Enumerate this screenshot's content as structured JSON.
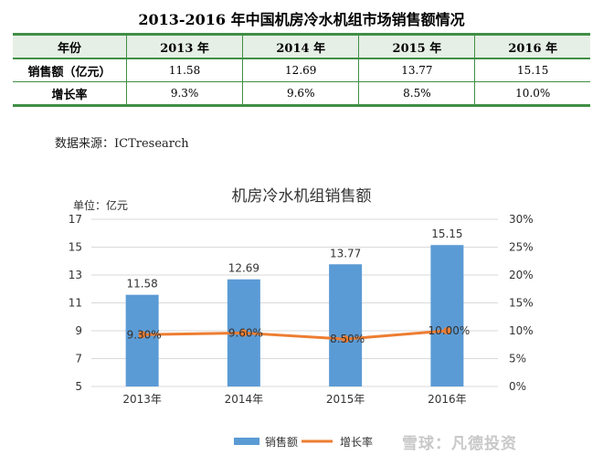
{
  "doc_title": "2013-2016 年中国机房冷水机组市场销售额情况",
  "table": {
    "headers": [
      "年份",
      "2013 年",
      "2014 年",
      "2015 年",
      "2016 年"
    ],
    "rows": [
      [
        "销售额（亿元）",
        "11.58",
        "12.69",
        "13.77",
        "15.15"
      ],
      [
        "增长率",
        "9.3%",
        "9.6%",
        "8.5%",
        "10.0%"
      ]
    ]
  },
  "source": "数据来源：ICTresearch",
  "watermark": "雪球：凡德投资",
  "colors": {
    "bar": "#5b9bd5",
    "line": "#ed7d31",
    "table_line": "#3f8f45",
    "table_header_bg": "#e6efe5"
  },
  "chart_data": {
    "type": "bar",
    "title": "机房冷水机组销售额",
    "unit_label": "单位：亿元",
    "categories": [
      "2013年",
      "2014年",
      "2015年",
      "2016年"
    ],
    "series": [
      {
        "name": "销售额",
        "type": "bar",
        "axis": "left",
        "values": [
          11.58,
          12.69,
          13.77,
          15.15
        ],
        "labels": [
          "11.58",
          "12.69",
          "13.77",
          "15.15"
        ]
      },
      {
        "name": "增长率",
        "type": "line",
        "axis": "right",
        "values": [
          9.3,
          9.6,
          8.5,
          10.0
        ],
        "labels": [
          "9.30%",
          "9.60%",
          "8.50%",
          "10.00%"
        ]
      }
    ],
    "y_left": {
      "min": 5,
      "max": 17,
      "ticks": [
        "5",
        "7",
        "9",
        "11",
        "13",
        "15",
        "17"
      ]
    },
    "y_right": {
      "min": 0,
      "max": 30,
      "ticks": [
        "0%",
        "5%",
        "10%",
        "15%",
        "20%",
        "25%",
        "30%"
      ]
    },
    "grid": true,
    "legend_position": "bottom"
  }
}
